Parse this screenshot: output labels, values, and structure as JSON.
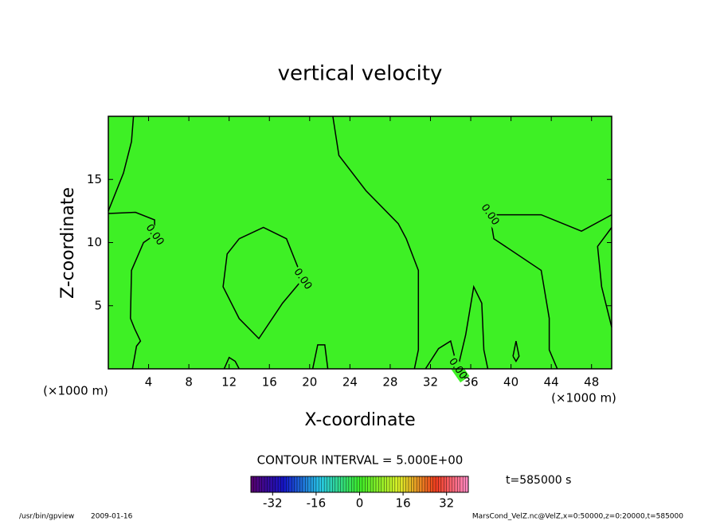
{
  "chart_data": {
    "type": "contour",
    "title": "vertical velocity",
    "xlabel": "X-coordinate",
    "ylabel": "Z-coordinate",
    "x_unit": "(×1000 m)",
    "xlim": [
      0,
      50
    ],
    "xticks": [
      4,
      8,
      12,
      16,
      20,
      24,
      28,
      32,
      36,
      40,
      44,
      48
    ],
    "ylim": [
      0,
      20
    ],
    "yticks": [
      5,
      10,
      15
    ],
    "field_color": "#3ef025",
    "contour_interval_text": "CONTOUR INTERVAL = 5.000E+00",
    "clim": [
      -40,
      40
    ],
    "cticks": [
      -32,
      -16,
      0,
      16,
      32
    ],
    "time_text": "t=585000 s",
    "program": "/usr/bin/gpview",
    "date": "2009-01-16",
    "source": "MarsCond_VelZ.nc@VelZ,x=0:50000,z=0:20000,t=585000",
    "contours": [
      {
        "level": 0,
        "x": [
          2.5,
          2.3,
          1.5,
          0
        ],
        "z": [
          20,
          18,
          15.5,
          12.5
        ]
      },
      {
        "level": 0,
        "label": "0.00",
        "x": [
          0,
          2.7,
          4.6,
          4.6,
          3.5,
          2.3,
          2.2,
          2.6,
          3.2,
          2.8,
          2.4
        ],
        "z": [
          12.3,
          12.4,
          11.8,
          10.6,
          10,
          7.8,
          4,
          3.2,
          2.2,
          1.8,
          0
        ]
      },
      {
        "level": 0,
        "label": "0.00",
        "x": [
          13.0,
          15.4,
          17.7,
          19.3,
          17.3,
          14.95,
          13.0,
          11.4,
          11.8,
          13.0
        ],
        "z": [
          10.3,
          11.2,
          10.3,
          7.1,
          5.2,
          2.4,
          3.98,
          6.5,
          9.1,
          10.3
        ]
      },
      {
        "level": 0,
        "x": [
          22.3,
          22.9,
          25.6,
          28.8,
          29.6,
          30.8,
          30.8,
          30.4
        ],
        "z": [
          20,
          16.9,
          14.1,
          11.5,
          10.3,
          7.8,
          1.5,
          0
        ]
      },
      {
        "level": 0,
        "label": "0.00",
        "x": [
          50,
          47,
          43,
          37.9,
          38.3,
          43,
          43.8,
          43.8,
          44.6
        ],
        "z": [
          12.2,
          10.9,
          12.2,
          12.2,
          10.3,
          7.8,
          4,
          1.5,
          0
        ]
      },
      {
        "level": 0,
        "x": [
          50,
          48.6,
          49,
          50
        ],
        "z": [
          11.2,
          9.7,
          6.5,
          3.3
        ]
      },
      {
        "level": 0,
        "label": "0.00",
        "x": [
          31.5,
          32.8,
          34.0,
          34.7,
          35.5,
          36.3,
          37.1,
          37.3,
          37.7
        ],
        "z": [
          0,
          1.6,
          2.2,
          0,
          2.7,
          6.5,
          5.2,
          1.5,
          0
        ]
      },
      {
        "level": 0,
        "x": [
          11.5,
          12.0,
          12.6,
          13.0
        ],
        "z": [
          0,
          0.9,
          0.6,
          0
        ]
      },
      {
        "level": 0,
        "x": [
          20.3,
          20.8,
          21.5,
          21.8
        ],
        "z": [
          0,
          1.9,
          1.9,
          0
        ]
      },
      {
        "level": 0,
        "x": [
          40.2,
          40.5,
          40.8,
          40.5,
          40.2
        ],
        "z": [
          1.0,
          2.2,
          1.0,
          0.6,
          1.0
        ]
      }
    ]
  }
}
